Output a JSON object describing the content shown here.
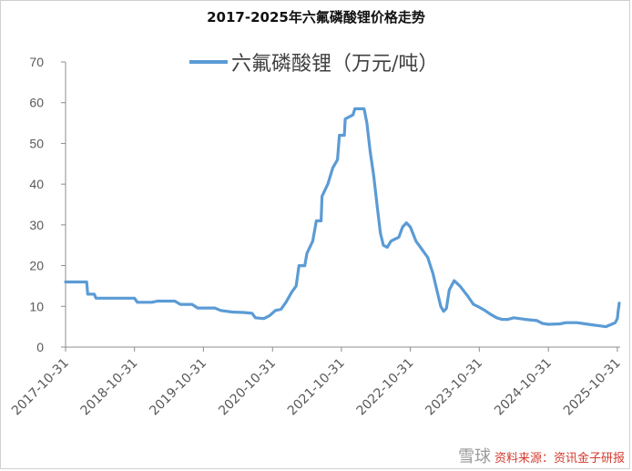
{
  "chart_data": {
    "type": "line",
    "title": "2017-2025年六氟磷酸锂价格走势",
    "ylim": [
      0,
      70
    ],
    "yticks": [
      0,
      10,
      20,
      30,
      40,
      50,
      60,
      70
    ],
    "xlim": [
      "2017-10-31",
      "2025-11-15"
    ],
    "xticks": [
      "2017-10-31",
      "2018-10-31",
      "2019-10-31",
      "2020-10-31",
      "2021-10-31",
      "2022-10-31",
      "2023-10-31",
      "2024-10-31",
      "2025-10-31"
    ],
    "grid": false,
    "legend_position": "top-center",
    "series_color": "#5B9BD5",
    "series": [
      {
        "name": "六氟磷酸锂（万元/吨）",
        "points": [
          [
            "2017-10-31",
            16.0
          ],
          [
            "2018-02-20",
            16.0
          ],
          [
            "2018-02-25",
            13.0
          ],
          [
            "2018-04-01",
            13.0
          ],
          [
            "2018-04-10",
            12.0
          ],
          [
            "2018-10-31",
            12.0
          ],
          [
            "2018-11-15",
            11.0
          ],
          [
            "2019-02-01",
            11.0
          ],
          [
            "2019-03-01",
            11.3
          ],
          [
            "2019-06-01",
            11.3
          ],
          [
            "2019-07-01",
            10.5
          ],
          [
            "2019-09-01",
            10.5
          ],
          [
            "2019-10-01",
            9.6
          ],
          [
            "2019-12-31",
            9.6
          ],
          [
            "2020-01-31",
            9.0
          ],
          [
            "2020-03-31",
            8.6
          ],
          [
            "2020-05-31",
            8.5
          ],
          [
            "2020-07-15",
            8.3
          ],
          [
            "2020-08-01",
            7.2
          ],
          [
            "2020-09-15",
            7.0
          ],
          [
            "2020-10-15",
            7.7
          ],
          [
            "2020-11-15",
            9.0
          ],
          [
            "2020-12-15",
            9.3
          ],
          [
            "2021-01-10",
            11.0
          ],
          [
            "2021-02-10",
            13.5
          ],
          [
            "2021-03-05",
            15.0
          ],
          [
            "2021-03-20",
            20.0
          ],
          [
            "2021-04-20",
            20.0
          ],
          [
            "2021-05-01",
            23.0
          ],
          [
            "2021-06-01",
            26.0
          ],
          [
            "2021-06-20",
            31.0
          ],
          [
            "2021-07-15",
            31.0
          ],
          [
            "2021-07-20",
            37.0
          ],
          [
            "2021-08-20",
            40.0
          ],
          [
            "2021-09-15",
            44.0
          ],
          [
            "2021-10-10",
            46.0
          ],
          [
            "2021-10-20",
            52.0
          ],
          [
            "2021-11-15",
            52.0
          ],
          [
            "2021-11-20",
            56.0
          ],
          [
            "2021-12-31",
            57.0
          ],
          [
            "2022-01-10",
            58.5
          ],
          [
            "2022-02-28",
            58.5
          ],
          [
            "2022-03-15",
            55.0
          ],
          [
            "2022-04-01",
            48.0
          ],
          [
            "2022-04-20",
            42.0
          ],
          [
            "2022-05-10",
            34.0
          ],
          [
            "2022-05-25",
            28.0
          ],
          [
            "2022-06-10",
            25.0
          ],
          [
            "2022-07-01",
            24.5
          ],
          [
            "2022-07-20",
            26.0
          ],
          [
            "2022-08-31",
            27.0
          ],
          [
            "2022-09-20",
            29.5
          ],
          [
            "2022-10-10",
            30.5
          ],
          [
            "2022-10-31",
            29.5
          ],
          [
            "2022-11-30",
            26.0
          ],
          [
            "2022-12-31",
            24.0
          ],
          [
            "2023-01-31",
            22.0
          ],
          [
            "2023-02-28",
            18.0
          ],
          [
            "2023-03-20",
            14.0
          ],
          [
            "2023-04-10",
            10.0
          ],
          [
            "2023-04-25",
            8.8
          ],
          [
            "2023-05-10",
            9.5
          ],
          [
            "2023-05-25",
            14.0
          ],
          [
            "2023-06-20",
            16.3
          ],
          [
            "2023-07-20",
            15.0
          ],
          [
            "2023-08-31",
            12.5
          ],
          [
            "2023-09-30",
            10.5
          ],
          [
            "2023-10-31",
            9.8
          ],
          [
            "2023-11-30",
            9.0
          ],
          [
            "2023-12-31",
            8.0
          ],
          [
            "2024-01-31",
            7.2
          ],
          [
            "2024-02-28",
            6.8
          ],
          [
            "2024-03-31",
            6.8
          ],
          [
            "2024-04-30",
            7.2
          ],
          [
            "2024-06-30",
            6.8
          ],
          [
            "2024-08-31",
            6.5
          ],
          [
            "2024-09-30",
            5.8
          ],
          [
            "2024-10-31",
            5.6
          ],
          [
            "2024-12-31",
            5.7
          ],
          [
            "2025-01-31",
            6.0
          ],
          [
            "2025-03-31",
            6.0
          ],
          [
            "2025-05-31",
            5.6
          ],
          [
            "2025-07-31",
            5.2
          ],
          [
            "2025-08-31",
            5.0
          ],
          [
            "2025-09-30",
            5.6
          ],
          [
            "2025-10-20",
            6.0
          ],
          [
            "2025-10-31",
            7.0
          ],
          [
            "2025-11-05",
            9.0
          ],
          [
            "2025-11-10",
            10.8
          ]
        ]
      }
    ]
  },
  "watermark": {
    "brand": "雪球",
    "text": "资料来源：资讯金子研报"
  }
}
